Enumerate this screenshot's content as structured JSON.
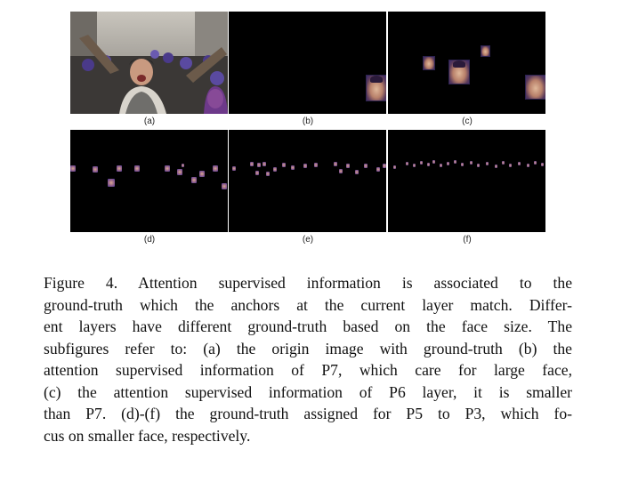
{
  "figure": {
    "panels": [
      {
        "id": "a",
        "label": "(a)",
        "content": "origin image with ground-truth"
      },
      {
        "id": "b",
        "label": "(b)",
        "content": "attention supervised information of P7"
      },
      {
        "id": "c",
        "label": "(c)",
        "content": "attention supervised information of P6"
      },
      {
        "id": "d",
        "label": "(d)",
        "content": "ground-truth assigned for P5"
      },
      {
        "id": "e",
        "label": "(e)",
        "content": "ground-truth assigned for P4"
      },
      {
        "id": "f",
        "label": "(f)",
        "content": "ground-truth assigned for P3"
      }
    ],
    "caption_lines": [
      "Figure 4. Attention supervised information is associated to the",
      "ground-truth which the anchors at the current layer match. Differ-",
      "ent layers have different ground-truth based on the face size. The",
      "subfigures refer to: (a) the origin image with ground-truth (b) the",
      "attention supervised information of P7, which care for large face,",
      "(c) the attention supervised information of P6 layer, it is smaller",
      "than P7. (d)-(f) the ground-truth assigned for P5 to P3, which fo-",
      "cus on smaller face, respectively."
    ]
  }
}
